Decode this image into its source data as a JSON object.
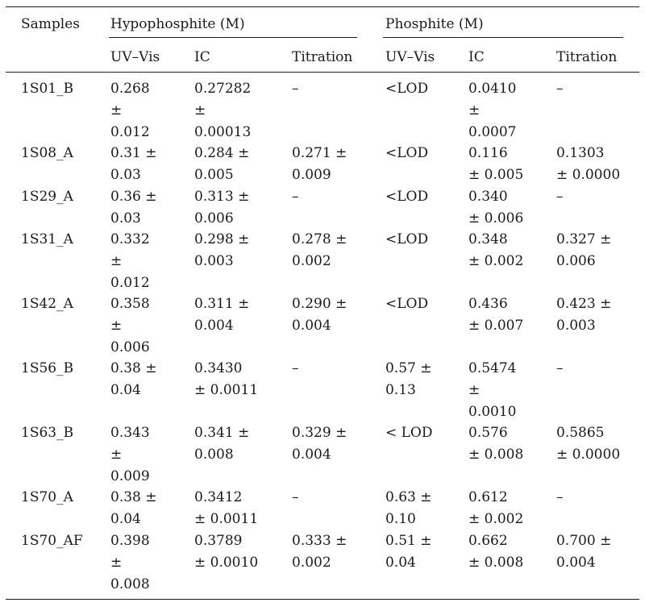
{
  "header": {
    "samples": "Samples",
    "group_hypo": "Hypophosphite (M)",
    "group_phos": "Phosphite (M)",
    "sub": [
      "UV–Vis",
      "IC",
      "Titration",
      "UV–Vis",
      "IC",
      "Titration"
    ]
  },
  "rows": [
    {
      "sample": "1S01_B",
      "cells": [
        "0.268\n±\n0.012",
        "0.27282\n±\n0.00013",
        "–",
        "<LOD",
        "0.0410\n±\n0.0007",
        "–"
      ]
    },
    {
      "sample": "1S08_A",
      "cells": [
        "0.31 ±\n0.03",
        "0.284 ±\n0.005",
        "0.271 ±\n0.009",
        "<LOD",
        "0.116\n± 0.005",
        "0.1303\n± 0.0000"
      ]
    },
    {
      "sample": "1S29_A",
      "cells": [
        "0.36 ±\n0.03",
        "0.313 ±\n0.006",
        "–",
        "<LOD",
        "0.340\n± 0.006",
        "–"
      ]
    },
    {
      "sample": "1S31_A",
      "cells": [
        "0.332\n±\n0.012",
        "0.298 ±\n0.003",
        "0.278 ±\n0.002",
        "<LOD",
        "0.348\n± 0.002",
        "0.327 ±\n0.006"
      ]
    },
    {
      "sample": "1S42_A",
      "cells": [
        "0.358\n±\n0.006",
        "0.311 ±\n0.004",
        "0.290 ±\n0.004",
        "<LOD",
        "0.436\n± 0.007",
        "0.423 ±\n0.003"
      ]
    },
    {
      "sample": "1S56_B",
      "cells": [
        "0.38 ±\n0.04",
        "0.3430\n± 0.0011",
        "–",
        "0.57 ±\n0.13",
        "0.5474\n±\n0.0010",
        "–"
      ]
    },
    {
      "sample": "1S63_B",
      "cells": [
        "0.343\n±\n0.009",
        "0.341 ±\n0.008",
        "0.329 ±\n0.004",
        "< LOD",
        "0.576\n± 0.008",
        "0.5865\n± 0.0000"
      ]
    },
    {
      "sample": "1S70_A",
      "cells": [
        "0.38 ±\n0.04",
        "0.3412\n± 0.0011",
        "–",
        "0.63 ±\n0.10",
        "0.612\n± 0.002",
        "–"
      ]
    },
    {
      "sample": "1S70_AF",
      "cells": [
        "0.398\n±\n0.008",
        "0.3789\n± 0.0010",
        "0.333 ±\n0.002",
        "0.51 ±\n0.04",
        "0.662\n± 0.008",
        "0.700 ±\n0.004"
      ]
    }
  ]
}
